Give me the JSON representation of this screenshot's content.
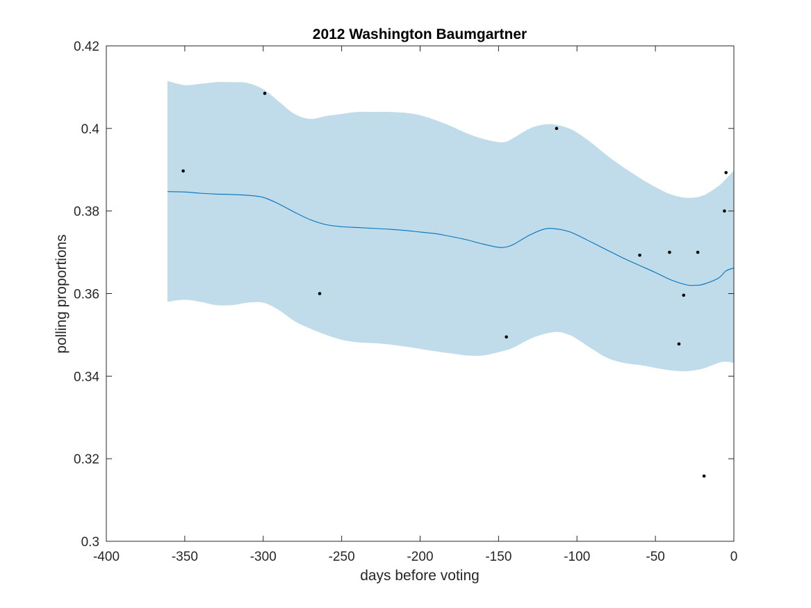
{
  "chart_data": {
    "type": "line",
    "title": "2012 Washington Baumgartner",
    "xlabel": "days before voting",
    "ylabel": "polling proportions",
    "xlim": [
      -400,
      0
    ],
    "ylim": [
      0.3,
      0.42
    ],
    "xticks": [
      -400,
      -350,
      -300,
      -250,
      -200,
      -150,
      -100,
      -50,
      0
    ],
    "yticks": [
      0.3,
      0.32,
      0.34,
      0.36,
      0.38,
      0.4,
      0.42
    ],
    "xtick_labels": [
      "-400",
      "-350",
      "-300",
      "-250",
      "-200",
      "-150",
      "-100",
      "-50",
      "0"
    ],
    "ytick_labels": [
      "0.3",
      "0.32",
      "0.34",
      "0.36",
      "0.38",
      "0.4",
      "0.42"
    ],
    "grid": false,
    "legend": false,
    "colors": {
      "band": "#c0dcea",
      "line": "#0072bd",
      "points": "#000000",
      "axes": "#262626"
    },
    "band": {
      "x": [
        -361,
        -350,
        -340,
        -330,
        -320,
        -310,
        -300,
        -290,
        -280,
        -270,
        -260,
        -250,
        -240,
        -230,
        -220,
        -210,
        -200,
        -190,
        -180,
        -170,
        -160,
        -150,
        -145,
        -140,
        -130,
        -120,
        -112,
        -105,
        -100,
        -90,
        -80,
        -70,
        -60,
        -50,
        -40,
        -30,
        -20,
        -10,
        -5,
        0
      ],
      "upper": [
        0.4115,
        0.4105,
        0.4108,
        0.4112,
        0.4112,
        0.411,
        0.4095,
        0.4065,
        0.4035,
        0.4023,
        0.403,
        0.4035,
        0.404,
        0.404,
        0.404,
        0.4038,
        0.4032,
        0.402,
        0.4005,
        0.3988,
        0.3975,
        0.3967,
        0.3968,
        0.3978,
        0.4,
        0.401,
        0.4008,
        0.4,
        0.399,
        0.3963,
        0.3932,
        0.3905,
        0.388,
        0.3858,
        0.384,
        0.3832,
        0.3837,
        0.386,
        0.3878,
        0.3898
      ],
      "lower": [
        0.358,
        0.3585,
        0.358,
        0.3572,
        0.3572,
        0.3578,
        0.3578,
        0.356,
        0.3533,
        0.3515,
        0.35,
        0.3488,
        0.3482,
        0.348,
        0.3477,
        0.3472,
        0.3466,
        0.346,
        0.3455,
        0.345,
        0.345,
        0.3458,
        0.3463,
        0.347,
        0.349,
        0.3503,
        0.3507,
        0.35,
        0.349,
        0.3465,
        0.3443,
        0.3432,
        0.3427,
        0.342,
        0.3414,
        0.3412,
        0.3418,
        0.3432,
        0.3435,
        0.3432
      ]
    },
    "series": [
      {
        "x": [
          -361,
          -350,
          -340,
          -330,
          -320,
          -310,
          -300,
          -290,
          -280,
          -270,
          -260,
          -250,
          -240,
          -230,
          -220,
          -210,
          -200,
          -190,
          -180,
          -170,
          -160,
          -150,
          -145,
          -140,
          -130,
          -120,
          -112,
          -105,
          -100,
          -90,
          -80,
          -70,
          -60,
          -50,
          -40,
          -30,
          -25,
          -20,
          -10,
          -5,
          0
        ],
        "values": [
          0.3847,
          0.3846,
          0.3843,
          0.3841,
          0.384,
          0.3838,
          0.3833,
          0.3817,
          0.3797,
          0.3779,
          0.3767,
          0.3762,
          0.376,
          0.3758,
          0.3756,
          0.3753,
          0.3749,
          0.3745,
          0.3738,
          0.373,
          0.372,
          0.3712,
          0.3713,
          0.372,
          0.3742,
          0.3757,
          0.3756,
          0.375,
          0.3742,
          0.3723,
          0.3704,
          0.3685,
          0.3668,
          0.3651,
          0.3633,
          0.3621,
          0.362,
          0.3622,
          0.3637,
          0.3655,
          0.3662
        ]
      }
    ],
    "points": {
      "x": [
        -351,
        -299,
        -264,
        -145,
        -113,
        -60,
        -41,
        -35,
        -32,
        -23,
        -19,
        -6,
        -5
      ],
      "y": [
        0.3897,
        0.4085,
        0.36,
        0.3495,
        0.4,
        0.3693,
        0.37,
        0.3478,
        0.3596,
        0.37,
        0.3158,
        0.38,
        0.3893
      ]
    }
  }
}
